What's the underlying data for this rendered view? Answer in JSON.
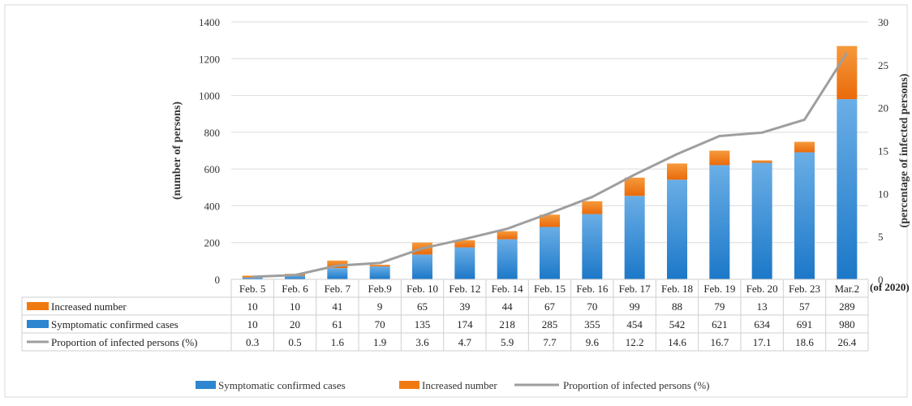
{
  "chart_data": {
    "type": "bar",
    "stacked": true,
    "categories": [
      "Feb. 5",
      "Feb. 6",
      "Feb. 7",
      "Feb.9",
      "Feb. 10",
      "Feb. 12",
      "Feb. 14",
      "Feb. 15",
      "Feb. 16",
      "Feb. 17",
      "Feb. 18",
      "Feb. 19",
      "Feb. 20",
      "Feb. 23",
      "Mar.2"
    ],
    "x_suffix": "(of 2020)",
    "series": [
      {
        "name": "Symptomatic confirmed cases",
        "type": "bar",
        "axis": "left",
        "color": "#2e86d0",
        "values": [
          10,
          20,
          61,
          70,
          135,
          174,
          218,
          285,
          355,
          454,
          542,
          621,
          634,
          691,
          980
        ]
      },
      {
        "name": "Increased number",
        "type": "bar",
        "axis": "left",
        "color": "#f07a12",
        "values": [
          10,
          10,
          41,
          9,
          65,
          39,
          44,
          67,
          70,
          99,
          88,
          79,
          13,
          57,
          289
        ]
      },
      {
        "name": "Proportion of infected persons (%)",
        "type": "line",
        "axis": "right",
        "color": "#9e9e9e",
        "values": [
          0.3,
          0.5,
          1.6,
          1.9,
          3.6,
          4.7,
          5.9,
          7.7,
          9.6,
          12.2,
          14.6,
          16.7,
          17.1,
          18.6,
          26.4
        ]
      }
    ],
    "ylabel": "(number of persons)",
    "y2label": "(percentage of infected persons)",
    "ylim": [
      0,
      1400
    ],
    "yticks": [
      0,
      200,
      400,
      600,
      800,
      1000,
      1200,
      1400
    ],
    "y2lim": [
      0,
      30
    ],
    "y2ticks": [
      0,
      5,
      10,
      15,
      20,
      25,
      30
    ],
    "grid": true,
    "data_table": true,
    "table_rows": [
      {
        "label": "Increased number",
        "series_index": 1
      },
      {
        "label": "Symptomatic confirmed cases",
        "series_index": 0
      },
      {
        "label": "Proportion of infected persons (%)",
        "series_index": 2
      }
    ],
    "legend": {
      "position": "bottom",
      "items": [
        "Symptomatic confirmed cases",
        "Increased number",
        "Proportion of infected persons (%)"
      ]
    }
  }
}
